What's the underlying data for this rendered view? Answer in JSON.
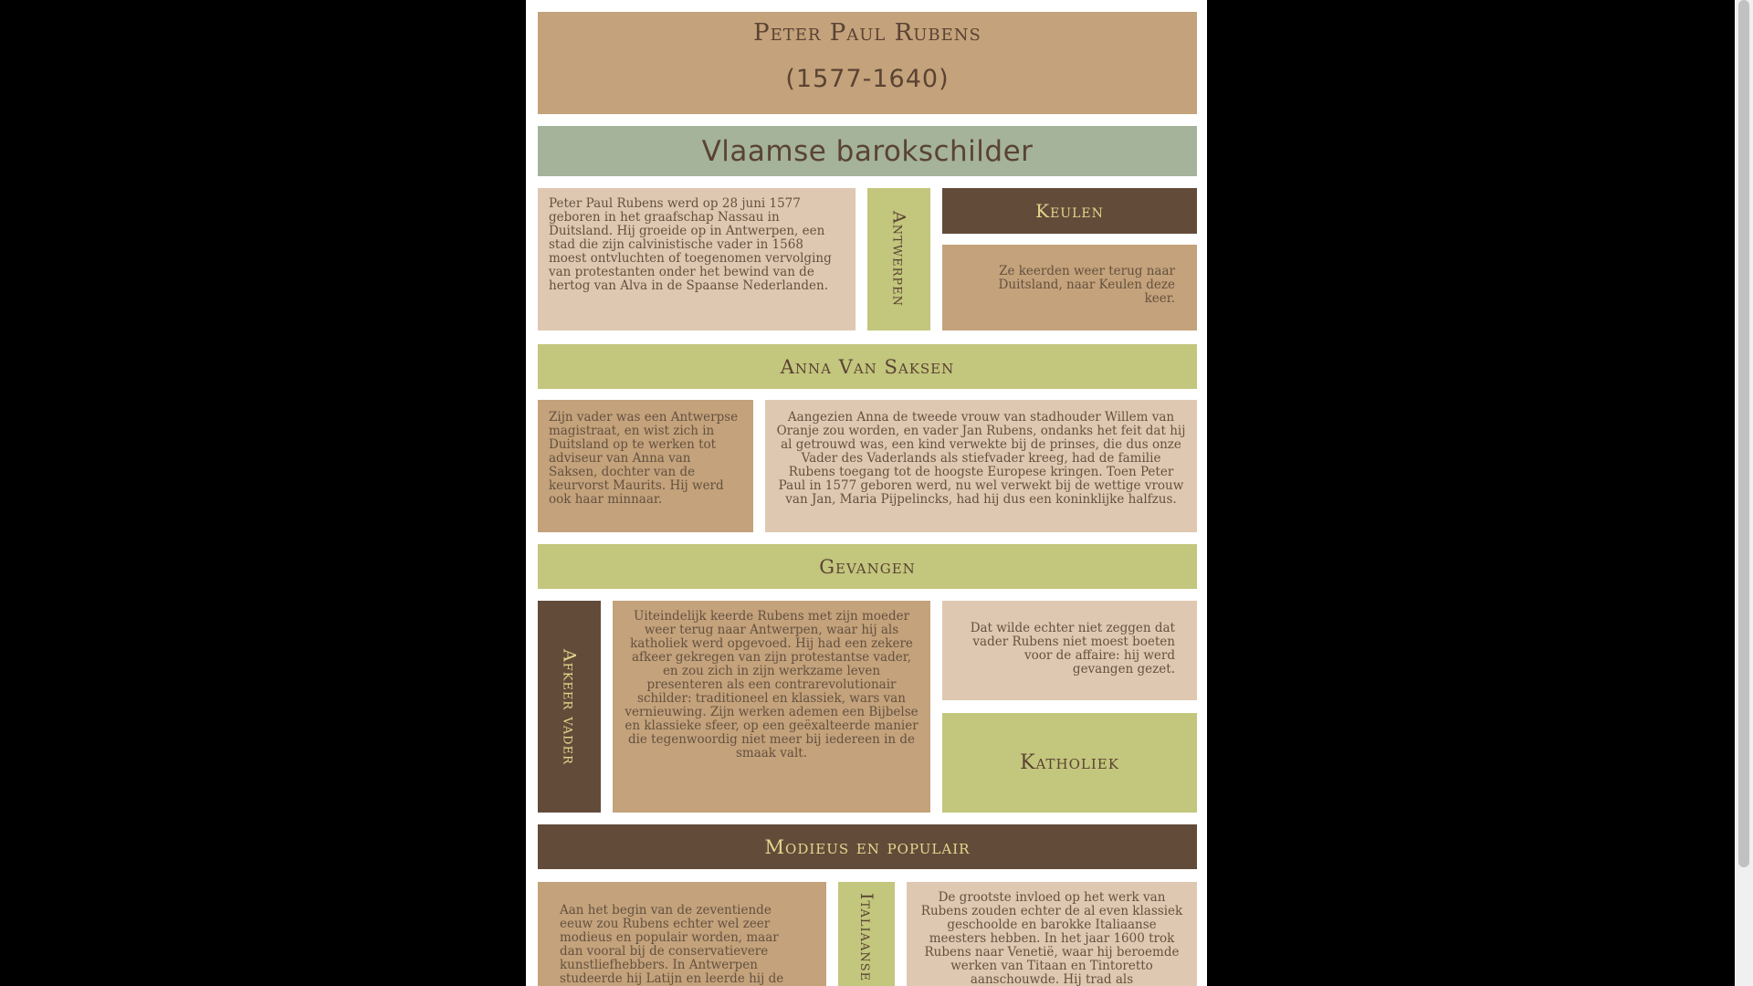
{
  "page_title": "Peter Paul Rubens",
  "years": "(1577-1640)",
  "subtitle": "Vlaamse barokschilder",
  "section1": {
    "text": "Peter Paul Rubens werd op 28 juni 1577 geboren in het graafschap Nassau in Duitsland. Hij groeide op in Antwerpen, een stad die zijn calvinistische vader in 1568 moest ontvluchten of toegenomen vervolging van protestanten onder het bewind van de hertog van Alva in de Spaanse Nederlanden.",
    "vertical_label": "Antwerpen",
    "side_title": "Keulen",
    "side_text": "Ze keerden weer terug naar Duitsland, naar Keulen deze keer."
  },
  "section2": {
    "heading": "Anna Van Saksen",
    "left_text": "Zijn vader was een Antwerpse magistraat, en wist zich in Duitsland op te werken tot adviseur van Anna van Saksen, dochter van de keurvorst Maurits. Hij werd ook haar minnaar.",
    "right_text": "Aangezien Anna de tweede vrouw van stadhouder Willem van Oranje zou worden, en vader Jan Rubens, ondanks het feit dat hij al getrouwd was, een kind verwekte bij de prinses, die dus onze Vader des Vaderlands als stiefvader kreeg, had de familie Rubens toegang tot de hoogste Europese kringen. Toen Peter Paul in 1577 geboren werd, nu wel verwekt bij de wettige vrouw van Jan, Maria Pijpelincks, had hij dus een koninklijke halfzus."
  },
  "section3": {
    "heading": "Gevangen",
    "vertical_label": "Afkeer vader",
    "middle_text": "Uiteindelijk keerde Rubens met zijn moeder weer terug naar Antwerpen, waar hij als katholiek werd opgevoed. Hij had een zekere afkeer gekregen van zijn protestantse vader, en zou zich in zijn werkzame leven presenteren als een contrarevolutionair schilder: traditioneel en klassiek, wars van vernieuwing. Zijn werken ademen een Bijbelse en klassieke sfeer, op een geëxalteerde manier die tegenwoordig niet meer bij iedereen in de smaak valt.",
    "right_text": "Dat wilde echter niet zeggen dat vader Rubens niet moest boeten voor de affaire: hij werd gevangen gezet.",
    "right_title": "Katholiek"
  },
  "section4": {
    "heading": "Modieus en populair",
    "left_text": "Aan het begin van de zeventiende eeuw zou Rubens echter wel zeer modieus en populair worden, maar dan vooral bij de conservatievere kunstliefhebbers. In Antwerpen studeerde hij Latijn en leerde hij de",
    "vertical_label": "Italiaanse",
    "right_text": "De grootste invloed op het werk van Rubens zouden echter de al even klassiek geschoolde en barokke Italiaanse meesters hebben. In het jaar 1600 trok Rubens naar Venetië, waar hij beroemde werken van Titaan en Tintoretto aanschouwde. Hij trad als"
  },
  "colors": {
    "tan": "#c4a27b",
    "sand": "#dfc8b1",
    "sage": "#a4b39a",
    "green": "#c3c67d",
    "brown": "#634b3a",
    "heading_text": "#5a4333",
    "light_heading_text": "#e3d68c"
  }
}
